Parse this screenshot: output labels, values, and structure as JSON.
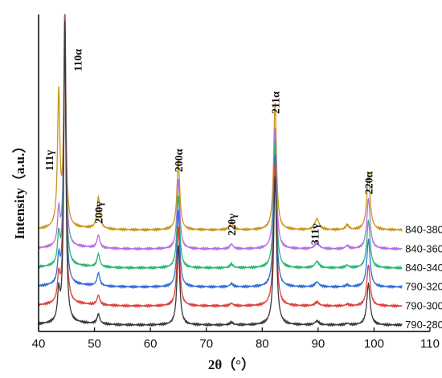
{
  "chart_data": {
    "type": "line",
    "title": "",
    "xlabel": "2θ（°）",
    "ylabel": "Intensity（a.u.）",
    "xlim": [
      40,
      110
    ],
    "xticks": [
      40,
      50,
      60,
      70,
      80,
      90,
      100,
      110
    ],
    "ylim": [
      0,
      100
    ],
    "grid": false,
    "colors": {
      "axis": "#000000",
      "series": [
        "#c9961a",
        "#b46fe6",
        "#2bb673",
        "#2f6fd6",
        "#e0403a",
        "#3a3a3a"
      ]
    },
    "peaks": [
      {
        "label": "111γ",
        "x": 43.6
      },
      {
        "label": "110α",
        "x": 44.7
      },
      {
        "label": "200γ",
        "x": 50.7
      },
      {
        "label": "200α",
        "x": 65.0
      },
      {
        "label": "220γ",
        "x": 74.5
      },
      {
        "label": "211α",
        "x": 82.3
      },
      {
        "label": "311γ",
        "x": 89.8
      },
      {
        "label": "220α",
        "x": 99.0
      }
    ],
    "series": [
      {
        "name": "840-380",
        "offset": 32,
        "peaks": {
          "111γ": 42,
          "110α": 70,
          "200γ": 10,
          "200α": 22,
          "220γ": 2.5,
          "211α": 40,
          "311γ": 3.5,
          "220α": 18,
          "small95": 1.5
        }
      },
      {
        "name": "840-360",
        "offset": 26,
        "peaks": {
          "111γ": 11,
          "110α": 75,
          "200γ": 4,
          "200α": 22,
          "220γ": 1.5,
          "211α": 38,
          "311γ": 2,
          "220α": 16,
          "small95": 1
        }
      },
      {
        "name": "840-340",
        "offset": 20,
        "peaks": {
          "111γ": 9,
          "110α": 80,
          "200γ": 4,
          "200α": 23,
          "220γ": 1.2,
          "211α": 40,
          "311γ": 2,
          "220α": 15,
          "small95": 0.8
        }
      },
      {
        "name": "790-320",
        "offset": 14,
        "peaks": {
          "111γ": 8,
          "110α": 85,
          "200γ": 4,
          "200α": 24,
          "220γ": 1,
          "211α": 42,
          "311γ": 1.5,
          "220α": 15,
          "small95": 0.6
        }
      },
      {
        "name": "790-300",
        "offset": 8,
        "peaks": {
          "111γ": 8,
          "110α": 90,
          "200γ": 3,
          "200α": 25,
          "220γ": 0.8,
          "211α": 45,
          "311γ": 1.2,
          "220α": 13,
          "small95": 0.5
        }
      },
      {
        "name": "790-280",
        "offset": 2,
        "peaks": {
          "111γ": 9,
          "110α": 95,
          "200γ": 3,
          "200α": 25,
          "220γ": 0.8,
          "211α": 47,
          "311γ": 1.2,
          "220α": 13,
          "small95": 0.5
        }
      }
    ]
  }
}
